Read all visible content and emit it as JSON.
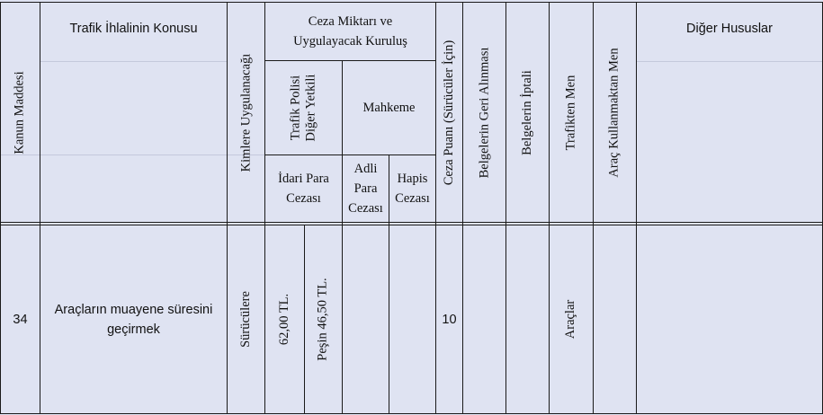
{
  "headers": {
    "kanun_maddesi": "Kanun Maddesi",
    "ihlal_konusu": "Trafik İhlalinin Konusu",
    "kimlere": "Kimlere Uygulanacağı",
    "ceza_miktari_line1": "Ceza Miktarı ve",
    "ceza_miktari_line2": "Uygulayacak Kuruluş",
    "trafik_polisi_line1": "Trafik Polisi",
    "trafik_polisi_line2": "Diğer Yetkili",
    "mahkeme": "Mahkeme",
    "idari_para_line1": "İdari Para",
    "idari_para_line2": "Cezası",
    "adli_para_line1": "Adli",
    "adli_para_line2": "Para",
    "adli_para_line3": "Cezası",
    "hapis_line1": "Hapis",
    "hapis_line2": "Cezası",
    "ceza_puani": "Ceza Puanı (Sürücüler İçin)",
    "belge_geri": "Belgelerin Geri Alınması",
    "belge_iptal": "Belgelerin İptali",
    "trafikten_men": "Trafikten Men",
    "arac_kullanmaktan_men": "Araç Kullanmaktan Men",
    "diger_hususlar": "Diğer Hususlar"
  },
  "rows": [
    {
      "madde": "34",
      "konu_line1": "Araçların muayene süresini",
      "konu_line2": "geçirmek",
      "kimlere": "Sürücülere",
      "idari_para_1": "62,00 TL.",
      "idari_para_2": "Peşin 46,50 TL.",
      "adli_para": "",
      "hapis": "",
      "ceza_puani": "10",
      "belge_geri": "",
      "belge_iptal": "",
      "trafikten_men": "Araçlar",
      "arac_kullanmaktan_men": "",
      "diger_hususlar": ""
    }
  ]
}
